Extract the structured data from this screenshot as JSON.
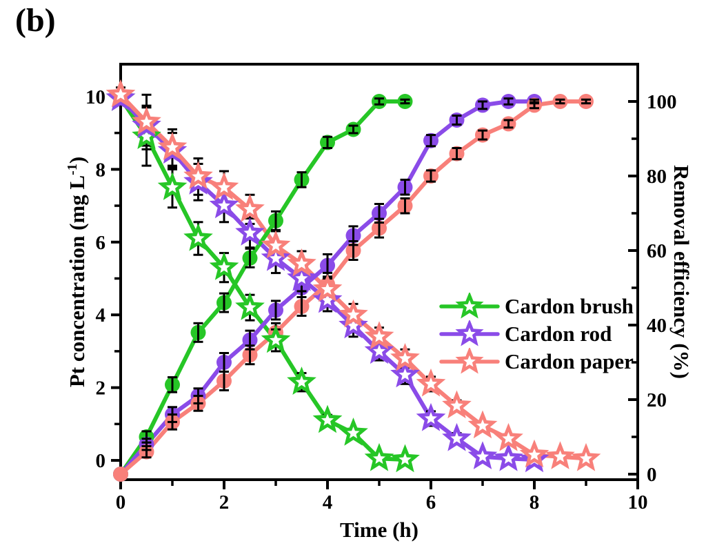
{
  "panel_label": "(b)",
  "chart_data": {
    "type": "line",
    "title": "",
    "xlabel": "Time (h)",
    "ylabel_left": {
      "text": "Pt concentration (mg L",
      "sup": "-1",
      "suffix": ")"
    },
    "ylabel_right": "Removal efficiency (%)",
    "grid": false,
    "legend_position": "inside-right-middle",
    "axes": {
      "x": {
        "range": [
          0,
          10
        ],
        "major": [
          0,
          2,
          4,
          6,
          8,
          10
        ],
        "minor": [
          1,
          3,
          5,
          7,
          9
        ]
      },
      "y_left": {
        "range": [
          -0.53,
          10.89
        ],
        "major": [
          0,
          2,
          4,
          6,
          8,
          10
        ],
        "minor": [
          1,
          3,
          5,
          7,
          9
        ]
      },
      "y_right": {
        "range": [
          -1.48,
          110
        ],
        "major": [
          0,
          20,
          40,
          60,
          80,
          100
        ],
        "minor": [
          10,
          30,
          50,
          70,
          90
        ]
      }
    },
    "legend": [
      {
        "label": "Cardon brush",
        "color": "#26c626"
      },
      {
        "label": "Cardon rod",
        "color": "#8a4be8"
      },
      {
        "label": "Cardon paper",
        "color": "#f8807a"
      }
    ],
    "series": [
      {
        "name": "Cardon brush - Pt concentration",
        "axis": "left",
        "marker": "star",
        "color": "#26c626",
        "x": [
          0,
          0.5,
          1,
          1.5,
          2,
          2.5,
          3,
          3.5,
          4,
          4.5,
          5,
          5.5
        ],
        "y": [
          9.95,
          8.9,
          7.5,
          6.1,
          5.3,
          4.2,
          3.3,
          2.15,
          1.1,
          0.75,
          0.05,
          0.02
        ],
        "err": [
          0.15,
          0.8,
          0.55,
          0.45,
          0.4,
          0.35,
          0.3,
          0.25,
          0.15,
          0.12,
          0.1,
          0.08
        ]
      },
      {
        "name": "Cardon rod - Pt concentration",
        "axis": "left",
        "marker": "star",
        "color": "#8a4be8",
        "x": [
          0,
          0.5,
          1,
          1.5,
          2,
          2.5,
          3,
          3.5,
          4,
          4.5,
          5,
          5.5,
          6,
          6.5,
          7,
          7.5,
          8
        ],
        "y": [
          9.95,
          9.2,
          8.5,
          7.65,
          7.0,
          6.25,
          5.55,
          5.0,
          4.4,
          3.7,
          3.0,
          2.35,
          1.15,
          0.6,
          0.1,
          0.05,
          0.02
        ],
        "err": [
          0.15,
          0.55,
          0.5,
          0.5,
          0.45,
          0.4,
          0.4,
          0.35,
          0.3,
          0.3,
          0.25,
          0.25,
          0.2,
          0.15,
          0.12,
          0.1,
          0.08
        ]
      },
      {
        "name": "Cardon paper - Pt concentration",
        "axis": "left",
        "marker": "star",
        "color": "#f8807a",
        "x": [
          0,
          0.5,
          1,
          1.5,
          2,
          2.5,
          3,
          3.5,
          4,
          4.5,
          5,
          5.5,
          6,
          6.5,
          7,
          7.5,
          8,
          8.5,
          9
        ],
        "y": [
          10.05,
          9.3,
          8.6,
          7.8,
          7.5,
          6.9,
          5.9,
          5.4,
          4.7,
          4.0,
          3.4,
          2.8,
          2.1,
          1.5,
          0.95,
          0.6,
          0.15,
          0.1,
          0.05
        ],
        "err": [
          0.2,
          0.75,
          0.5,
          0.5,
          0.45,
          0.4,
          0.4,
          0.35,
          0.3,
          0.3,
          0.25,
          0.25,
          0.2,
          0.15,
          0.12,
          0.1,
          0.1,
          0.08,
          0.08
        ]
      },
      {
        "name": "Cardon brush - Removal efficiency",
        "axis": "right",
        "marker": "circle",
        "color": "#26c626",
        "x": [
          0,
          0.5,
          1,
          1.5,
          2,
          2.5,
          3,
          3.5,
          4,
          4.5,
          5,
          5.5
        ],
        "y": [
          0,
          10,
          24,
          38,
          46,
          58,
          68,
          79,
          89,
          92.5,
          100,
          100
        ],
        "err": [
          0,
          1.5,
          2,
          2.5,
          2.5,
          2.5,
          2.5,
          2,
          1.5,
          1,
          0.8,
          0.5
        ]
      },
      {
        "name": "Cardon rod - Removal efficiency",
        "axis": "right",
        "marker": "circle",
        "color": "#8a4be8",
        "x": [
          0,
          0.5,
          1,
          1.5,
          2,
          2.5,
          3,
          3.5,
          4,
          4.5,
          5,
          5.5,
          6,
          6.5,
          7,
          7.5,
          8
        ],
        "y": [
          0,
          8,
          16,
          21,
          30,
          36,
          44,
          50,
          56,
          64,
          70,
          77,
          89.5,
          95,
          99,
          100,
          100
        ],
        "err": [
          0,
          1.5,
          2,
          2,
          2.5,
          2.5,
          2.5,
          2.5,
          3,
          2.5,
          2.5,
          2,
          1.5,
          1.2,
          1,
          0.8,
          0.5
        ]
      },
      {
        "name": "Cardon paper - Removal efficiency",
        "axis": "right",
        "marker": "circle",
        "color": "#f8807a",
        "x": [
          0,
          0.5,
          1,
          1.5,
          2,
          2.5,
          3,
          3.5,
          4,
          4.5,
          5,
          5.5,
          6,
          6.5,
          7,
          7.5,
          8,
          8.5,
          9
        ],
        "y": [
          0,
          6,
          14,
          19,
          25,
          32,
          38,
          45,
          51,
          60,
          66,
          72,
          80,
          86,
          91,
          94,
          99,
          100,
          100
        ],
        "err": [
          0,
          1.5,
          2,
          2,
          2.5,
          2.5,
          2.5,
          2.5,
          3,
          2.5,
          2.5,
          2,
          1.5,
          1.5,
          1.2,
          1,
          0.8,
          0.5,
          0.5
        ]
      }
    ]
  }
}
